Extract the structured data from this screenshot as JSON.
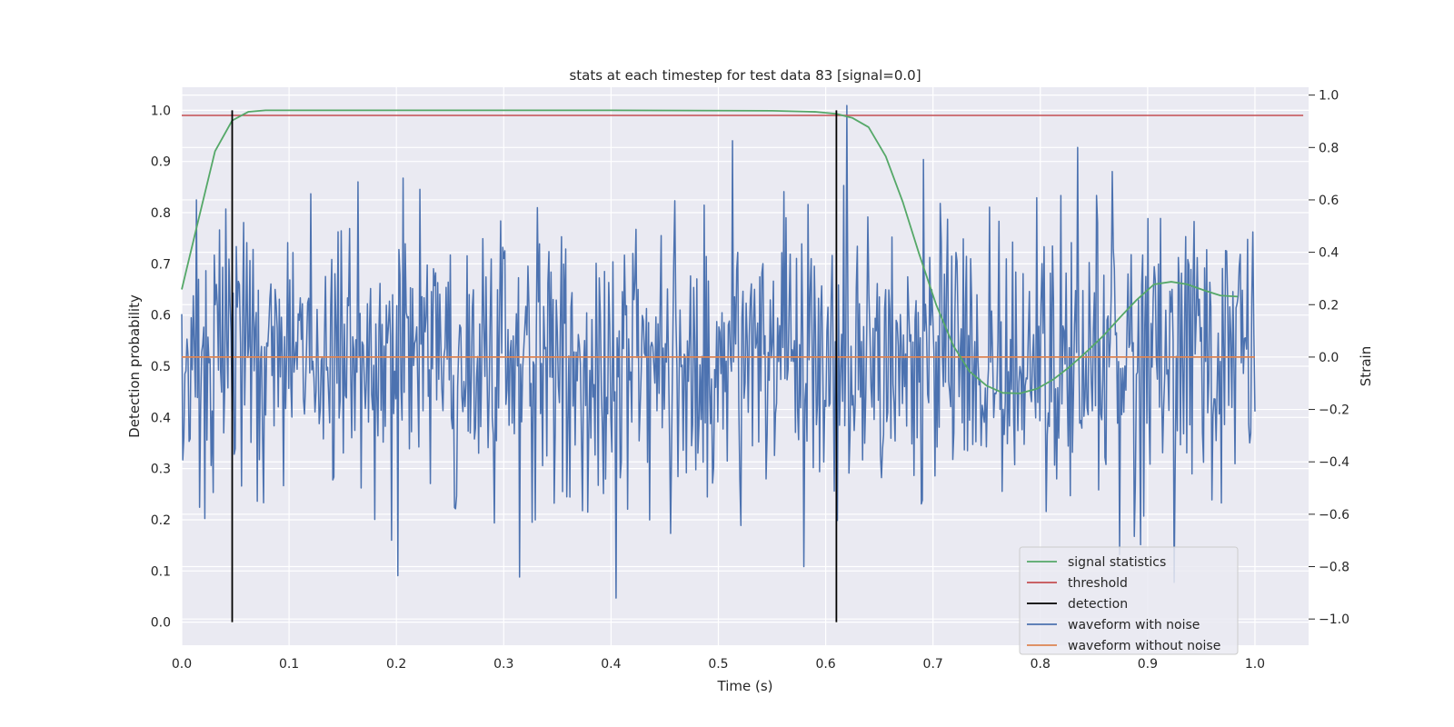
{
  "chart_data": {
    "type": "line",
    "title": "stats at each timestep for test data 83 [signal=0.0]",
    "xlabel": "Time (s)",
    "ylabel_left": "Detection probability",
    "ylabel_right": "Strain",
    "xlim": [
      0.0,
      1.05
    ],
    "ylim_left": [
      -0.045,
      1.045
    ],
    "ylim_right": [
      -1.1,
      1.03
    ],
    "x_ticks": [
      "0.0",
      "0.1",
      "0.2",
      "0.3",
      "0.4",
      "0.5",
      "0.6",
      "0.7",
      "0.8",
      "0.9",
      "1.0"
    ],
    "y_left_ticks": [
      "0.0",
      "0.1",
      "0.2",
      "0.3",
      "0.4",
      "0.5",
      "0.6",
      "0.7",
      "0.8",
      "0.9",
      "1.0"
    ],
    "y_right_ticks": [
      "−1.0",
      "−0.8",
      "−0.6",
      "−0.4",
      "−0.2",
      "0.0",
      "0.2",
      "0.4",
      "0.6",
      "0.8",
      "1.0"
    ],
    "grid": true,
    "legend_placement": "lower-right",
    "legend": [
      {
        "label": "signal statistics",
        "color": "#55a868"
      },
      {
        "label": "threshold",
        "color": "#c44e52"
      },
      {
        "label": "detection",
        "color": "#000000"
      },
      {
        "label": "waveform with noise",
        "color": "#4c72b0"
      },
      {
        "label": "waveform without noise",
        "color": "#dd8452"
      }
    ],
    "series": [
      {
        "name": "signal statistics",
        "axis": "left",
        "color": "#55a868",
        "x": [
          0.0,
          0.016,
          0.031,
          0.047,
          0.062,
          0.078,
          0.094,
          0.2,
          0.4,
          0.55,
          0.59,
          0.61,
          0.625,
          0.64,
          0.656,
          0.672,
          0.687,
          0.703,
          0.719,
          0.734,
          0.75,
          0.765,
          0.781,
          0.797,
          0.812,
          0.828,
          0.844,
          0.859,
          0.875,
          0.89,
          0.906,
          0.922,
          0.937,
          0.953,
          0.968,
          0.984
        ],
        "y": [
          0.65,
          0.79,
          0.92,
          0.98,
          0.997,
          1.0,
          1.0,
          1.0,
          1.0,
          0.999,
          0.997,
          0.993,
          0.985,
          0.967,
          0.91,
          0.82,
          0.72,
          0.62,
          0.54,
          0.49,
          0.462,
          0.448,
          0.447,
          0.456,
          0.474,
          0.5,
          0.53,
          0.56,
          0.597,
          0.63,
          0.66,
          0.665,
          0.66,
          0.648,
          0.638,
          0.636
        ]
      },
      {
        "name": "threshold",
        "axis": "left",
        "color": "#c44e52",
        "x": [
          0.0,
          1.045
        ],
        "y": [
          0.99,
          0.99
        ]
      },
      {
        "name": "detection",
        "axis": "left",
        "color": "#000000",
        "segments": [
          {
            "x": 0.047,
            "y": [
              0.0,
              1.0
            ]
          },
          {
            "x": 0.61,
            "y": [
              0.0,
              1.0
            ]
          }
        ]
      },
      {
        "name": "waveform with noise",
        "axis": "right",
        "color": "#4c72b0",
        "x_range": [
          0.0,
          1.0
        ],
        "n_points": 1024,
        "y_range": [
          -1.0,
          1.0
        ],
        "peaks": [
          {
            "x": 0.014,
            "y": 0.6
          },
          {
            "x": 0.62,
            "y": 0.96
          },
          {
            "x": 0.835,
            "y": 0.8
          },
          {
            "x": 0.405,
            "y": -0.92
          },
          {
            "x": 0.315,
            "y": -0.84
          },
          {
            "x": 0.58,
            "y": -0.8
          },
          {
            "x": 0.925,
            "y": -0.86
          }
        ]
      },
      {
        "name": "waveform without noise",
        "axis": "right",
        "color": "#dd8452",
        "x": [
          0.0,
          1.0
        ],
        "y": [
          0.0,
          0.0
        ]
      }
    ]
  }
}
